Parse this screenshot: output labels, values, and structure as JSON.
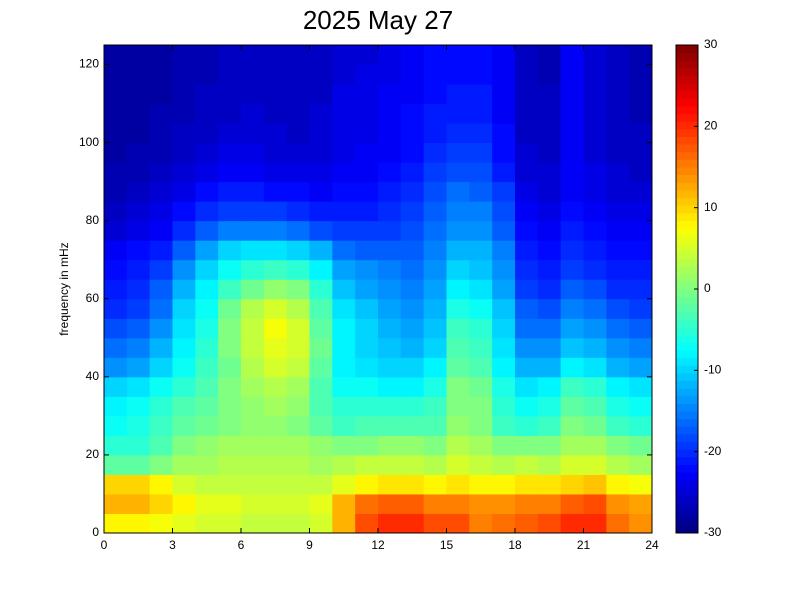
{
  "chart_data": {
    "type": "heatmap",
    "title": "2025 May 27",
    "ylabel": "frequency in mHz",
    "colormap": "jet",
    "xbins": [
      0,
      1,
      2,
      3,
      4,
      5,
      6,
      7,
      8,
      9,
      10,
      11,
      12,
      13,
      14,
      15,
      16,
      17,
      18,
      19,
      20,
      21,
      22,
      23,
      24
    ],
    "ybins": [
      0,
      5,
      10,
      15,
      20,
      25,
      30,
      35,
      40,
      45,
      50,
      55,
      60,
      65,
      70,
      75,
      80,
      85,
      90,
      95,
      100,
      105,
      110,
      115,
      120,
      125
    ],
    "xlim": [
      0,
      24
    ],
    "xticks": [
      0,
      3,
      6,
      9,
      12,
      15,
      18,
      21,
      24
    ],
    "ylim": [
      0,
      125
    ],
    "yticks": [
      0,
      20,
      40,
      60,
      80,
      100,
      120
    ],
    "clim": [
      -30,
      30
    ],
    "cticks": [
      -30,
      -20,
      -10,
      0,
      10,
      20,
      30
    ],
    "values": [
      [
        8,
        8,
        7,
        6,
        5,
        5,
        4,
        4,
        4,
        5,
        12,
        18,
        20,
        20,
        18,
        18,
        15,
        16,
        17,
        18,
        20,
        20,
        16,
        14
      ],
      [
        12,
        12,
        10,
        8,
        6,
        6,
        5,
        5,
        5,
        6,
        12,
        16,
        17,
        17,
        15,
        15,
        14,
        14,
        15,
        15,
        17,
        18,
        14,
        13
      ],
      [
        10,
        10,
        8,
        5,
        4,
        4,
        4,
        4,
        4,
        4,
        6,
        8,
        9,
        9,
        8,
        9,
        8,
        8,
        9,
        9,
        10,
        11,
        8,
        7
      ],
      [
        -2,
        -2,
        0,
        2,
        2,
        3,
        3,
        3,
        3,
        2,
        3,
        4,
        4,
        4,
        3,
        5,
        4,
        3,
        4,
        3,
        5,
        5,
        3,
        2
      ],
      [
        -5,
        -5,
        -3,
        0,
        1,
        2,
        2,
        2,
        2,
        1,
        0,
        0,
        1,
        1,
        0,
        3,
        2,
        0,
        0,
        0,
        2,
        2,
        0,
        -1
      ],
      [
        -7,
        -6,
        -4,
        -2,
        -1,
        0,
        1,
        1,
        0,
        -2,
        -4,
        -3,
        -3,
        -3,
        -3,
        1,
        0,
        -4,
        -5,
        -4,
        0,
        -1,
        -4,
        -5
      ],
      [
        -8,
        -7,
        -5,
        -3,
        -2,
        0,
        1,
        2,
        1,
        -3,
        -5,
        -5,
        -5,
        -5,
        -4,
        0,
        0,
        -5,
        -7,
        -6,
        -2,
        -3,
        -6,
        -7
      ],
      [
        -10,
        -9,
        -7,
        -5,
        -3,
        0,
        2,
        3,
        2,
        -3,
        -7,
        -7,
        -8,
        -8,
        -6,
        0,
        -1,
        -6,
        -9,
        -8,
        -4,
        -5,
        -8,
        -9
      ],
      [
        -14,
        -13,
        -10,
        -7,
        -4,
        -1,
        3,
        5,
        4,
        -2,
        -8,
        -9,
        -10,
        -10,
        -8,
        -2,
        -3,
        -8,
        -12,
        -12,
        -8,
        -9,
        -12,
        -13
      ],
      [
        -16,
        -15,
        -12,
        -8,
        -5,
        0,
        4,
        6,
        5,
        -1,
        -8,
        -10,
        -11,
        -12,
        -10,
        -3,
        -4,
        -9,
        -14,
        -14,
        -11,
        -12,
        -14,
        -15
      ],
      [
        -18,
        -17,
        -14,
        -9,
        -6,
        0,
        4,
        7,
        5,
        -2,
        -8,
        -10,
        -12,
        -13,
        -11,
        -4,
        -5,
        -10,
        -16,
        -16,
        -13,
        -14,
        -16,
        -17
      ],
      [
        -20,
        -19,
        -16,
        -10,
        -7,
        -1,
        3,
        5,
        3,
        -3,
        -9,
        -11,
        -13,
        -14,
        -12,
        -6,
        -7,
        -11,
        -17,
        -18,
        -15,
        -16,
        -18,
        -19
      ],
      [
        -21,
        -20,
        -17,
        -12,
        -8,
        -4,
        -1,
        1,
        0,
        -5,
        -11,
        -13,
        -14,
        -15,
        -13,
        -8,
        -9,
        -13,
        -19,
        -20,
        -17,
        -18,
        -20,
        -20
      ],
      [
        -22,
        -21,
        -19,
        -14,
        -10,
        -7,
        -5,
        -4,
        -5,
        -8,
        -13,
        -14,
        -15,
        -16,
        -14,
        -10,
        -11,
        -14,
        -20,
        -21,
        -19,
        -20,
        -21,
        -21
      ],
      [
        -23,
        -22,
        -21,
        -17,
        -13,
        -10,
        -9,
        -9,
        -10,
        -12,
        -16,
        -17,
        -17,
        -17,
        -15,
        -12,
        -12,
        -15,
        -21,
        -22,
        -20,
        -21,
        -22,
        -22
      ],
      [
        -25,
        -24,
        -23,
        -20,
        -17,
        -15,
        -15,
        -15,
        -16,
        -18,
        -19,
        -19,
        -19,
        -18,
        -16,
        -14,
        -14,
        -17,
        -22,
        -23,
        -21,
        -22,
        -23,
        -23
      ],
      [
        -26,
        -25,
        -24,
        -22,
        -20,
        -19,
        -19,
        -19,
        -20,
        -21,
        -21,
        -21,
        -20,
        -19,
        -17,
        -15,
        -15,
        -18,
        -23,
        -24,
        -22,
        -23,
        -24,
        -24
      ],
      [
        -27,
        -26,
        -25,
        -24,
        -22,
        -21,
        -21,
        -22,
        -22,
        -23,
        -22,
        -22,
        -21,
        -20,
        -18,
        -16,
        -17,
        -19,
        -24,
        -25,
        -23,
        -24,
        -25,
        -25
      ],
      [
        -27,
        -27,
        -26,
        -25,
        -24,
        -23,
        -23,
        -24,
        -24,
        -24,
        -23,
        -23,
        -22,
        -21,
        -19,
        -18,
        -18,
        -21,
        -25,
        -25,
        -23,
        -24,
        -25,
        -26
      ],
      [
        -28,
        -27,
        -27,
        -26,
        -25,
        -24,
        -24,
        -25,
        -25,
        -25,
        -24,
        -23,
        -23,
        -22,
        -20,
        -19,
        -19,
        -22,
        -25,
        -26,
        -23,
        -25,
        -26,
        -26
      ],
      [
        -28,
        -28,
        -27,
        -26,
        -26,
        -25,
        -25,
        -25,
        -26,
        -25,
        -24,
        -24,
        -23,
        -22,
        -21,
        -20,
        -20,
        -22,
        -26,
        -26,
        -23,
        -25,
        -26,
        -26
      ],
      [
        -28,
        -28,
        -27,
        -27,
        -26,
        -26,
        -25,
        -26,
        -26,
        -25,
        -24,
        -24,
        -23,
        -22,
        -21,
        -21,
        -21,
        -23,
        -26,
        -26,
        -23,
        -25,
        -26,
        -27
      ],
      [
        -28,
        -28,
        -28,
        -27,
        -26,
        -26,
        -26,
        -26,
        -26,
        -26,
        -24,
        -24,
        -23,
        -23,
        -22,
        -21,
        -21,
        -23,
        -26,
        -26,
        -23,
        -25,
        -26,
        -27
      ],
      [
        -28,
        -28,
        -28,
        -27,
        -27,
        -26,
        -26,
        -26,
        -26,
        -26,
        -25,
        -24,
        -24,
        -23,
        -22,
        -22,
        -22,
        -23,
        -26,
        -27,
        -23,
        -25,
        -26,
        -27
      ],
      [
        -28,
        -28,
        -28,
        -27,
        -27,
        -26,
        -26,
        -26,
        -26,
        -26,
        -25,
        -25,
        -24,
        -23,
        -22,
        -22,
        -22,
        -23,
        -26,
        -27,
        -23,
        -25,
        -26,
        -27
      ]
    ]
  }
}
